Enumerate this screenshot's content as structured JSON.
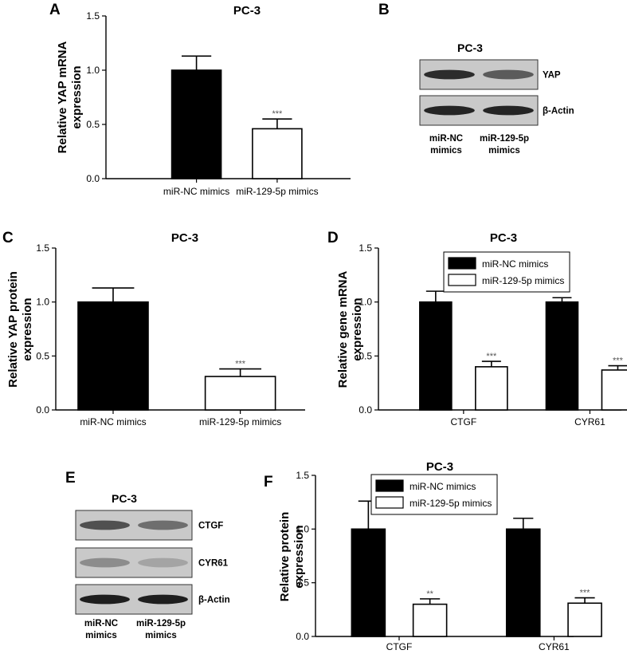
{
  "chart_data": [
    {
      "panel": "A",
      "type": "bar",
      "title": "PC-3",
      "ylabel": [
        "Relative YAP mRNA",
        "expression"
      ],
      "categories": [
        "miR-NC mimics",
        "miR-129-5p mimics"
      ],
      "values": [
        1.0,
        0.46
      ],
      "errors": [
        0.13,
        0.09
      ],
      "significance": [
        "",
        "***"
      ],
      "ylim": [
        0,
        1.5
      ],
      "yticks": [
        "0.0",
        "0.5",
        "1.0",
        "1.5"
      ],
      "fills": [
        "#000000",
        "#ffffff"
      ]
    },
    {
      "panel": "C",
      "type": "bar",
      "title": "PC-3",
      "ylabel": [
        "Relative YAP protein",
        "expression"
      ],
      "categories": [
        "miR-NC mimics",
        "miR-129-5p mimics"
      ],
      "values": [
        1.0,
        0.31
      ],
      "errors": [
        0.13,
        0.07
      ],
      "significance": [
        "",
        "***"
      ],
      "ylim": [
        0,
        1.5
      ],
      "yticks": [
        "0.0",
        "0.5",
        "1.0",
        "1.5"
      ],
      "fills": [
        "#000000",
        "#ffffff"
      ]
    },
    {
      "panel": "D",
      "type": "bar",
      "title": "PC-3",
      "ylabel": [
        "Relative gene mRNA",
        "expression"
      ],
      "categories": [
        "CTGF",
        "CYR61"
      ],
      "series": [
        {
          "name": "miR-NC mimics",
          "fill": "#000000",
          "values": [
            1.0,
            1.0
          ],
          "errors": [
            0.1,
            0.04
          ],
          "significance": [
            "",
            ""
          ]
        },
        {
          "name": "miR-129-5p mimics",
          "fill": "#ffffff",
          "values": [
            0.4,
            0.37
          ],
          "errors": [
            0.05,
            0.04
          ],
          "significance": [
            "***",
            "***"
          ]
        }
      ],
      "legend": "top-right",
      "ylim": [
        0,
        1.5
      ],
      "yticks": [
        "0.0",
        "0.5",
        "1.0",
        "1.5"
      ]
    },
    {
      "panel": "F",
      "type": "bar",
      "title": "PC-3",
      "ylabel": [
        "Relative protein",
        "expression"
      ],
      "categories": [
        "CTGF",
        "CYR61"
      ],
      "series": [
        {
          "name": "miR-NC mimics",
          "fill": "#000000",
          "values": [
            1.0,
            1.0
          ],
          "errors": [
            0.26,
            0.1
          ],
          "significance": [
            "",
            ""
          ]
        },
        {
          "name": "miR-129-5p mimics",
          "fill": "#ffffff",
          "values": [
            0.3,
            0.31
          ],
          "errors": [
            0.05,
            0.05
          ],
          "significance": [
            "**",
            "***"
          ]
        }
      ],
      "legend": "top-right",
      "ylim": [
        0,
        1.5
      ],
      "yticks": [
        "0.0",
        "0.5",
        "1.0",
        "1.5"
      ]
    }
  ],
  "blots": [
    {
      "panel": "B",
      "title": "PC-3",
      "bands": [
        "YAP",
        "β-Actin"
      ],
      "lanes": [
        [
          "miR-NC",
          "mimics"
        ],
        [
          "miR-129-5p",
          "mimics"
        ]
      ]
    },
    {
      "panel": "E",
      "title": "PC-3",
      "bands": [
        "CTGF",
        "CYR61",
        "β-Actin"
      ],
      "lanes": [
        [
          "miR-NC",
          "mimics"
        ],
        [
          "miR-129-5p",
          "mimics"
        ]
      ]
    }
  ]
}
